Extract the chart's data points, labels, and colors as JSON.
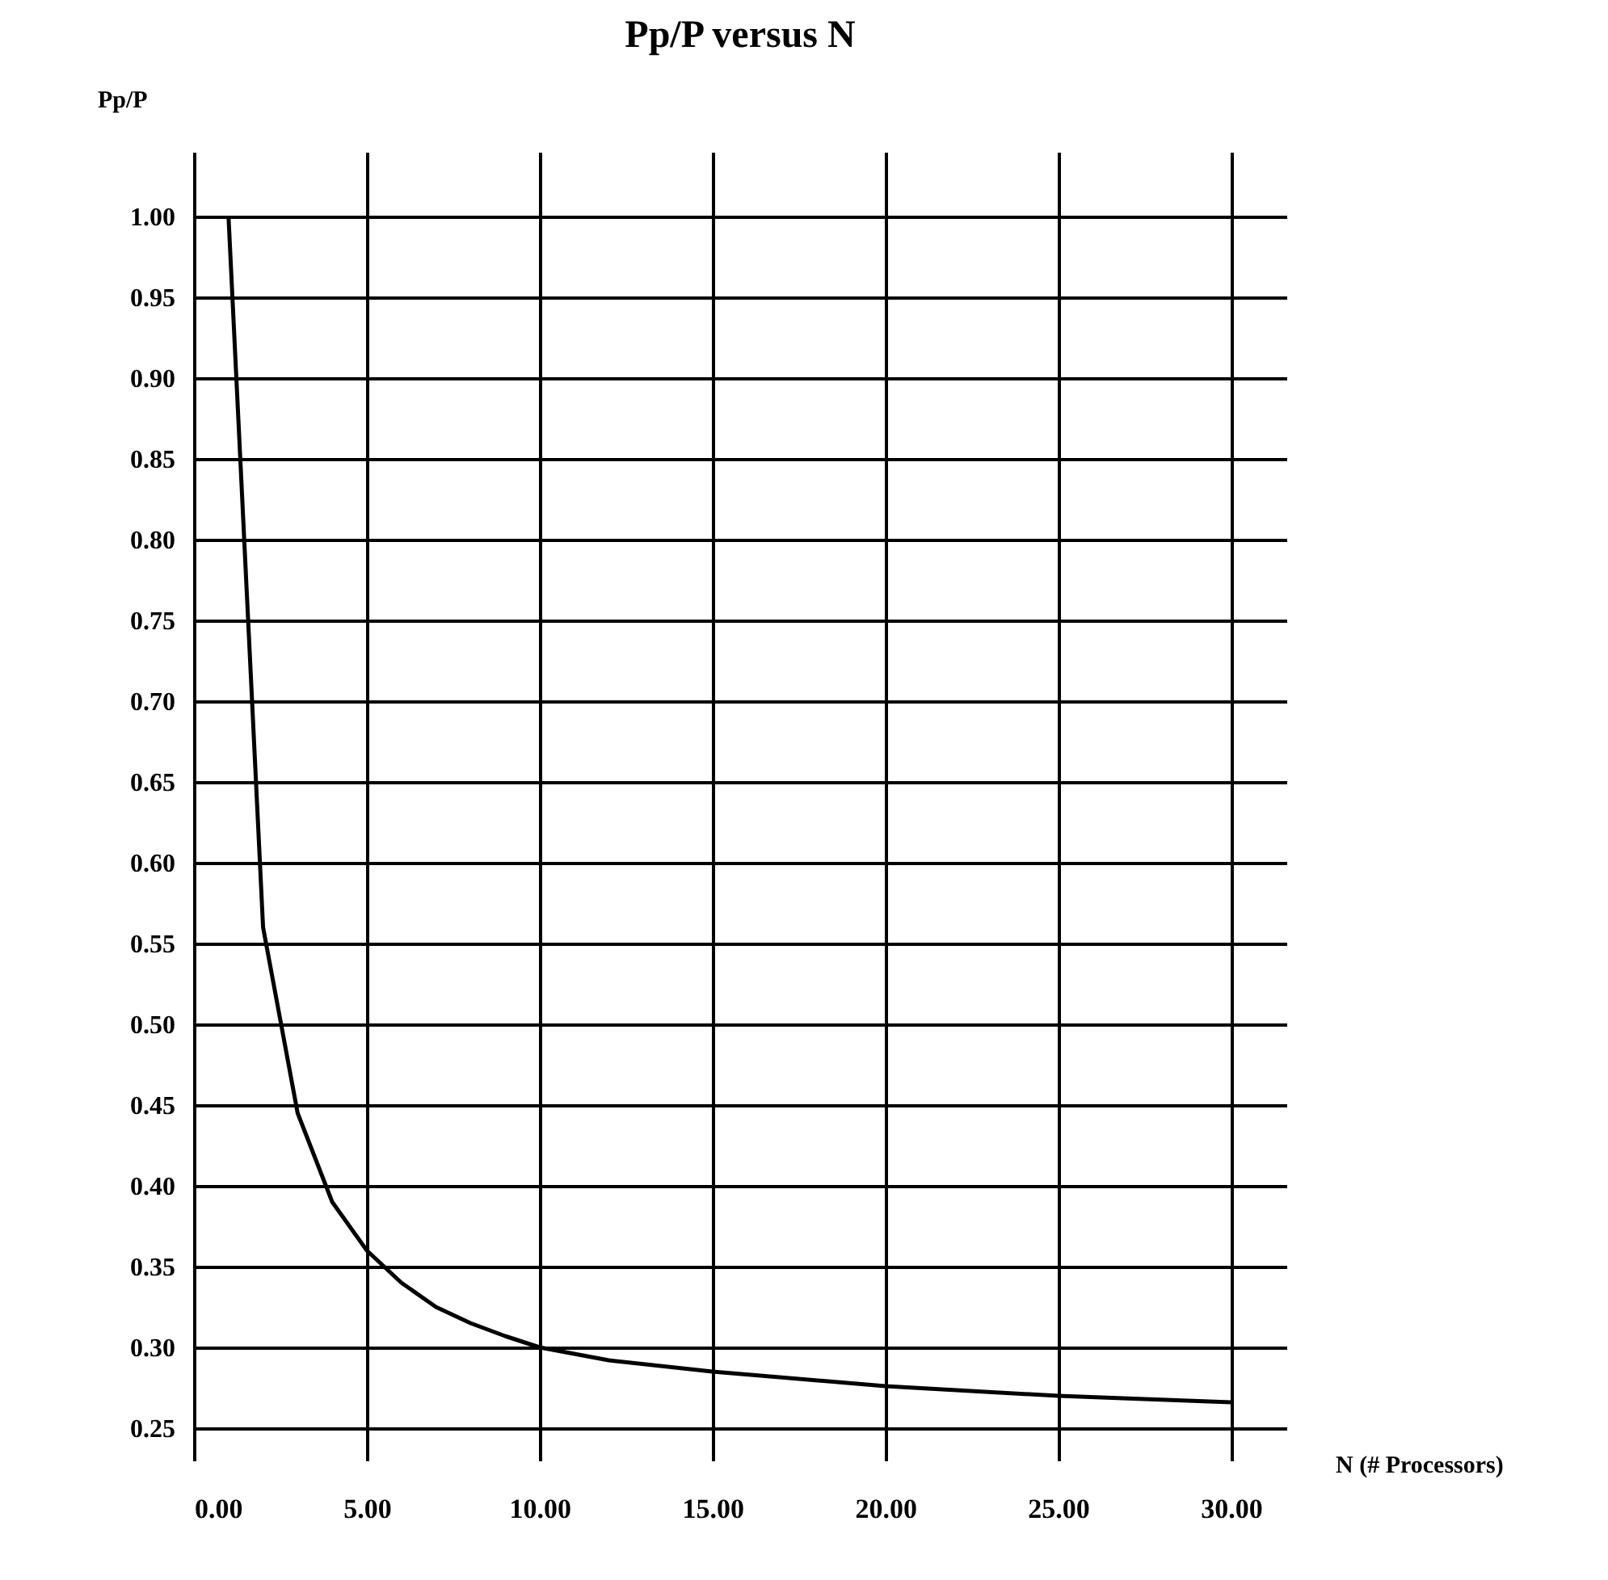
{
  "chart_data": {
    "type": "line",
    "title": "Pp/P versus N",
    "xlabel": "N (# Processors)",
    "ylabel": "Pp/P",
    "x": [
      1,
      2,
      3,
      4,
      5,
      6,
      7,
      8,
      9,
      10,
      12,
      15,
      20,
      25,
      30
    ],
    "series": [
      {
        "color": "#000000",
        "values": [
          1.0,
          0.56,
          0.445,
          0.39,
          0.36,
          0.34,
          0.325,
          0.315,
          0.307,
          0.3,
          0.292,
          0.285,
          0.276,
          0.27,
          0.266
        ]
      }
    ],
    "xlim": [
      0,
      31.6
    ],
    "ylim": [
      0.23,
      1.04
    ],
    "xticks": [
      {
        "value": 0,
        "label": "0.00"
      },
      {
        "value": 5,
        "label": "5.00"
      },
      {
        "value": 10,
        "label": "10.00"
      },
      {
        "value": 15,
        "label": "15.00"
      },
      {
        "value": 20,
        "label": "20.00"
      },
      {
        "value": 25,
        "label": "25.00"
      },
      {
        "value": 30,
        "label": "30.00"
      }
    ],
    "yticks": [
      {
        "value": 0.25,
        "label": "0.25"
      },
      {
        "value": 0.3,
        "label": "0.30"
      },
      {
        "value": 0.35,
        "label": "0.35"
      },
      {
        "value": 0.4,
        "label": "0.40"
      },
      {
        "value": 0.45,
        "label": "0.45"
      },
      {
        "value": 0.5,
        "label": "0.50"
      },
      {
        "value": 0.55,
        "label": "0.55"
      },
      {
        "value": 0.6,
        "label": "0.60"
      },
      {
        "value": 0.65,
        "label": "0.65"
      },
      {
        "value": 0.7,
        "label": "0.70"
      },
      {
        "value": 0.75,
        "label": "0.75"
      },
      {
        "value": 0.8,
        "label": "0.80"
      },
      {
        "value": 0.85,
        "label": "0.85"
      },
      {
        "value": 0.9,
        "label": "0.90"
      },
      {
        "value": 0.95,
        "label": "0.95"
      },
      {
        "value": 1.0,
        "label": "1.00"
      }
    ],
    "grid": true,
    "legend": false,
    "marker": "none",
    "line_style": "solid"
  }
}
